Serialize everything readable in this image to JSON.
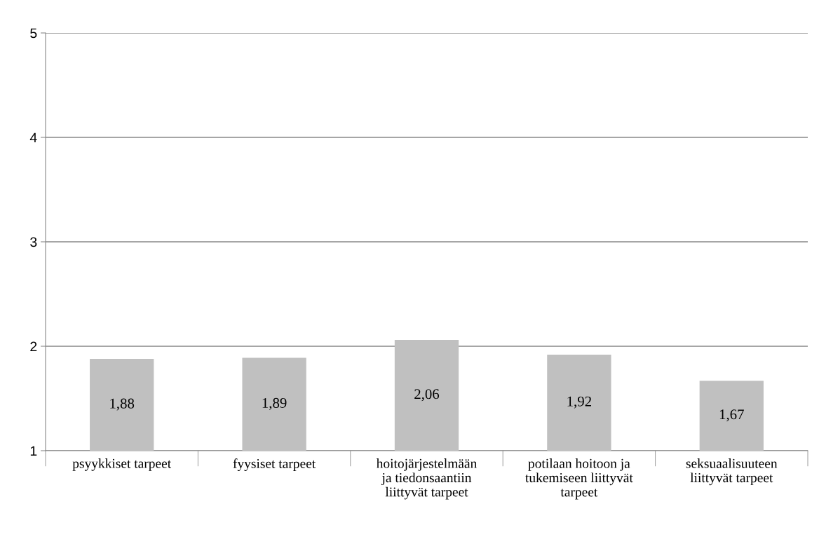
{
  "chart_data": {
    "type": "bar",
    "categories": [
      "psyykkiset tarpeet",
      "fyysiset tarpeet",
      "hoitojärjestelmään ja tiedonsaantiin liittyvät tarpeet",
      "potilaan hoitoon ja tukemiseen liittyvät tarpeet",
      "seksuaalisuuteen liittyvät tarpeet"
    ],
    "values": [
      1.88,
      1.89,
      2.06,
      1.92,
      1.67
    ],
    "value_labels": [
      "1,88",
      "1,89",
      "2,06",
      "1,92",
      "1,67"
    ],
    "color": "#c0c0c0",
    "ylim": [
      1,
      5
    ],
    "yticks": [
      1,
      2,
      3,
      4,
      5
    ],
    "grid": "y"
  }
}
